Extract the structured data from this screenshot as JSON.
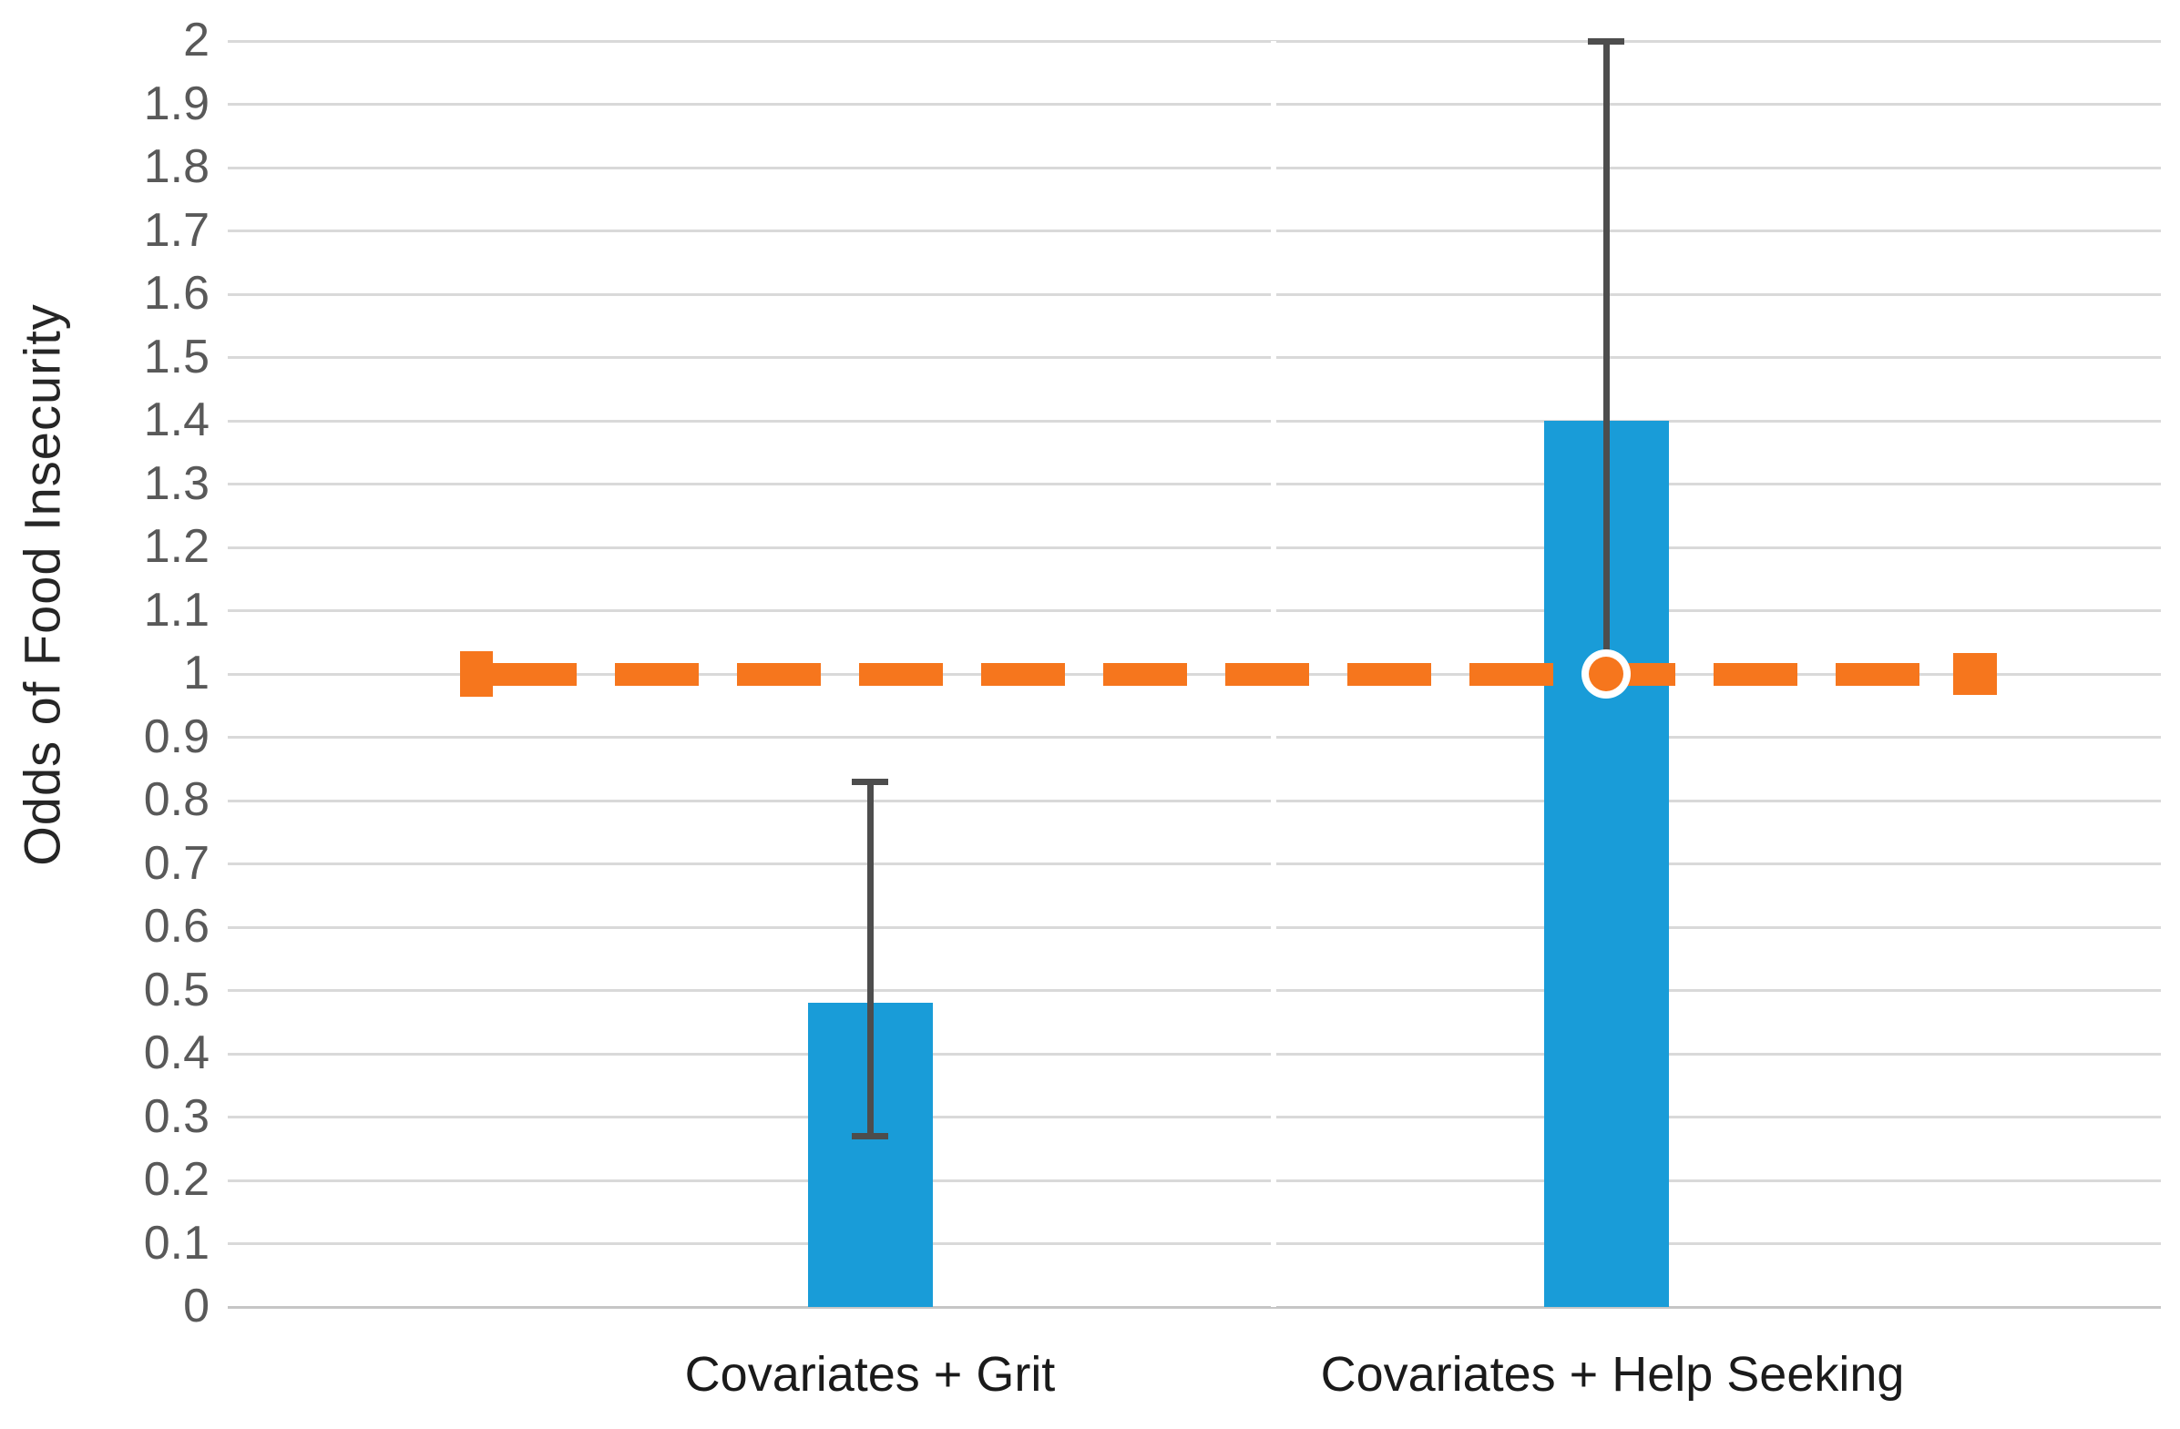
{
  "chart_data": {
    "type": "bar",
    "title": "",
    "ylabel": "Odds of Food Insecurity",
    "xlabel": "",
    "categories": [
      "Covariates + Grit",
      "Covariates + Help Seeking"
    ],
    "values": [
      0.48,
      1.4
    ],
    "error_bars": [
      {
        "low": 0.27,
        "high": 0.83
      },
      {
        "low": 1.0,
        "high": 2.0
      }
    ],
    "reference_line": {
      "value": 1.0,
      "style": "dashed",
      "marker_at_category_index": 1
    },
    "ylim": [
      0,
      2
    ],
    "ytick_step": 0.1,
    "yticks_top_to_bottom": [
      "2",
      "1.9",
      "1.8",
      "1.7",
      "1.6",
      "1.5",
      "1.4",
      "1.3",
      "1.2",
      "1.1",
      "1",
      "0.9",
      "0.8",
      "0.7",
      "0.6",
      "0.5",
      "0.4",
      "0.3",
      "0.2",
      "0.1",
      "0"
    ],
    "grid": "horizontal",
    "legend": "none",
    "colors": {
      "bar": "#199CD8",
      "reference_line": "#F6761D",
      "error_bar": "#4D4D4D",
      "gridline": "#D9D9D9",
      "zero_line": "#C6C6C6",
      "tick_text": "#595959",
      "category_text": "#1A1A1A"
    }
  }
}
